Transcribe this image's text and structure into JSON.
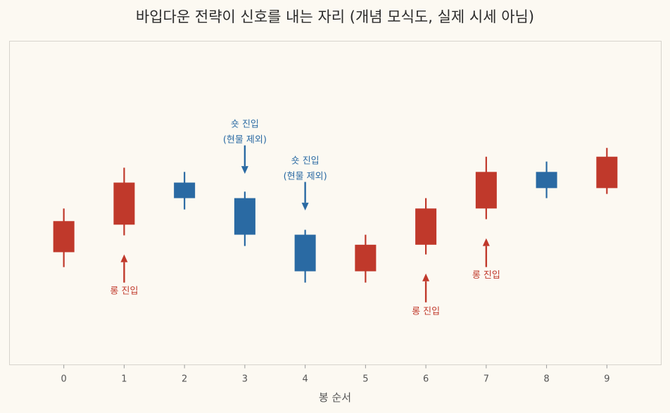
{
  "chart_data": {
    "type": "candlestick",
    "title": "바입다운 전략이 신호를 내는 자리 (개념 모식도, 실제 시세 아님)",
    "xlabel": "봉 순서",
    "ylabel": "",
    "x": [
      0,
      1,
      2,
      3,
      4,
      5,
      6,
      7,
      8,
      9
    ],
    "xlim": [
      -0.9,
      9.9
    ],
    "ylim": [
      0,
      100
    ],
    "grid": false,
    "up_color": "#c0392b",
    "down_color": "#2a6aa3",
    "candles": [
      {
        "x": 0,
        "open": 34.8,
        "close": 44.4,
        "high": 48.3,
        "low": 30.2,
        "direction": "up"
      },
      {
        "x": 1,
        "open": 43.3,
        "close": 56.3,
        "high": 60.9,
        "low": 40.0,
        "direction": "up"
      },
      {
        "x": 2,
        "open": 56.3,
        "close": 51.5,
        "high": 59.6,
        "low": 48.0,
        "direction": "down"
      },
      {
        "x": 3,
        "open": 51.5,
        "close": 40.2,
        "high": 53.5,
        "low": 36.7,
        "direction": "down"
      },
      {
        "x": 4,
        "open": 40.2,
        "close": 28.9,
        "high": 41.7,
        "low": 25.4,
        "direction": "down"
      },
      {
        "x": 5,
        "open": 28.9,
        "close": 37.1,
        "high": 40.2,
        "low": 25.4,
        "direction": "up"
      },
      {
        "x": 6,
        "open": 37.1,
        "close": 48.3,
        "high": 51.5,
        "low": 34.1,
        "direction": "up"
      },
      {
        "x": 7,
        "open": 48.3,
        "close": 59.6,
        "high": 64.3,
        "low": 45.0,
        "direction": "up"
      },
      {
        "x": 8,
        "open": 59.6,
        "close": 54.6,
        "high": 62.8,
        "low": 51.5,
        "direction": "down"
      },
      {
        "x": 9,
        "open": 54.6,
        "close": 64.3,
        "high": 67.0,
        "low": 52.8,
        "direction": "up"
      }
    ],
    "annotations": [
      {
        "x": 1,
        "side": "long",
        "lines": [
          "롱 진입"
        ],
        "arrow_tip": 34.1,
        "arrow_tail": 25.4,
        "text_y": 22.0,
        "color": "#c0392b"
      },
      {
        "x": 3,
        "side": "short",
        "lines": [
          "숏 진입",
          "(현물 제외)"
        ],
        "arrow_tip": 59.0,
        "arrow_tail": 67.8,
        "text_y": 73.5,
        "color": "#2a6aa3"
      },
      {
        "x": 4,
        "side": "short",
        "lines": [
          "숏 진입",
          "(현물 제외)"
        ],
        "arrow_tip": 47.7,
        "arrow_tail": 56.5,
        "text_y": 62.2,
        "color": "#2a6aa3"
      },
      {
        "x": 6,
        "side": "long",
        "lines": [
          "롱 진입"
        ],
        "arrow_tip": 28.2,
        "arrow_tail": 19.3,
        "text_y": 15.7,
        "color": "#c0392b"
      },
      {
        "x": 7,
        "side": "long",
        "lines": [
          "롱 진입"
        ],
        "arrow_tip": 39.1,
        "arrow_tail": 30.2,
        "text_y": 26.9,
        "color": "#c0392b"
      }
    ]
  }
}
